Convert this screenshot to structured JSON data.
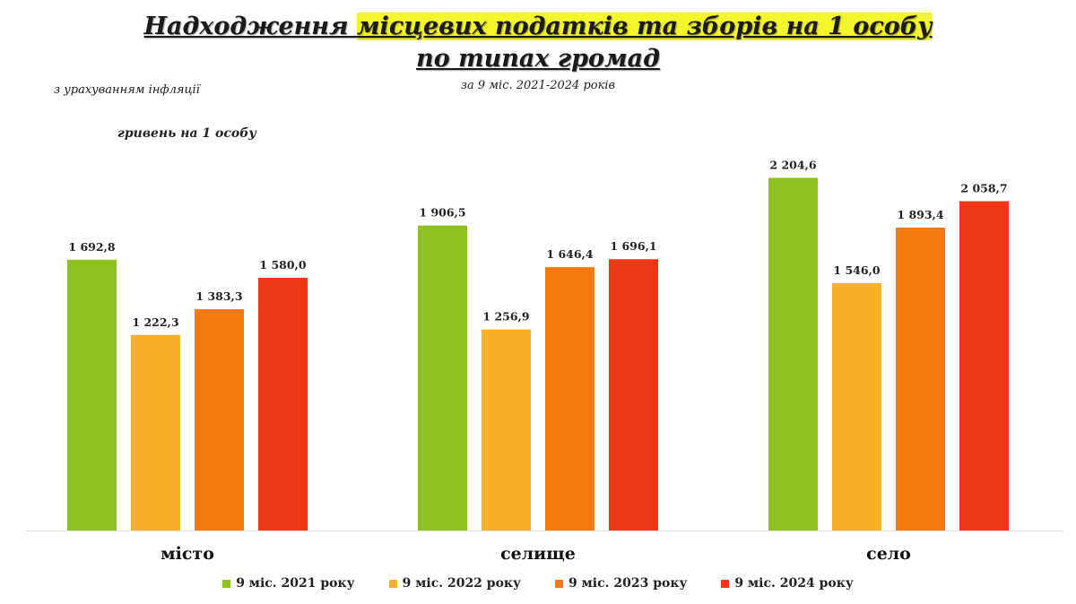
{
  "title": {
    "part1": "Надходження ",
    "part2_highlight": "місцевих податків та зборів на 1 особу",
    "line2": "по типах громад"
  },
  "subtitle": "за 9 міс. 2021-2024 років",
  "note": "з урахуванням інфляції",
  "unit": "гривень на 1 особу",
  "colors": {
    "highlight": "#f2f52b",
    "s2021": "#8cc11f",
    "s2022": "#f8b02a",
    "s2023": "#f67a12",
    "s2024": "#ec3815",
    "axis": "#d9d9d9"
  },
  "chart_data": {
    "type": "bar",
    "title": "Надходження місцевих податків та зборів на 1 особу по типах громад",
    "subtitle": "за 9 міс. 2021-2024 років",
    "ylabel": "гривень на 1 особу",
    "categories": [
      "місто",
      "селище",
      "село"
    ],
    "series": [
      {
        "name": "9 міс. 2021 року",
        "color": "#8cc11f",
        "values": [
          1692.8,
          1906.5,
          2204.6
        ],
        "labels": [
          "1 692,8",
          "1 906,5",
          "2 204,6"
        ]
      },
      {
        "name": "9 міс. 2022 року",
        "color": "#f8b02a",
        "values": [
          1222.3,
          1256.9,
          1546.0
        ],
        "labels": [
          "1 222,3",
          "1 256,9",
          "1 546,0"
        ]
      },
      {
        "name": "9 міс. 2023 року",
        "color": "#f67a12",
        "values": [
          1383.3,
          1646.4,
          1893.4
        ],
        "labels": [
          "1 383,3",
          "1 646,4",
          "1 893,4"
        ]
      },
      {
        "name": "9 міс. 2024 року",
        "color": "#ec3815",
        "values": [
          1580.0,
          1696.1,
          2058.7
        ],
        "labels": [
          "1 580,0",
          "1 696,1",
          "2 058,7"
        ]
      }
    ],
    "ylim": [
      0,
      2400
    ],
    "grid": false,
    "legend": "bottom"
  }
}
